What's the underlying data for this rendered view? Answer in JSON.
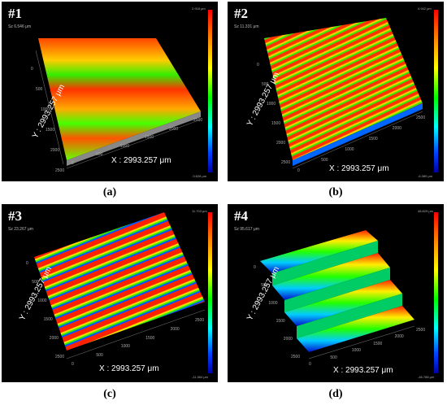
{
  "panels": [
    {
      "number": "#1",
      "sz": "Sz 6.546 μm",
      "x_label": "X : 2993.257 μm",
      "y_label": "Y : 2993.257 μm",
      "cbar_top": "2.918 μm",
      "cbar_bottom": "-3.628 μm",
      "caption": "(a)"
    },
    {
      "number": "#2",
      "sz": "Sz 11.331 μm",
      "x_label": "X : 2993.257 μm",
      "y_label": "Y : 2993.257 μm",
      "cbar_top": "4.942 μm",
      "cbar_bottom": "-6.389 μm",
      "caption": "(b)"
    },
    {
      "number": "#3",
      "sz": "Sz 23.267 μm",
      "x_label": "X : 2993.257 μm",
      "y_label": "Y : 2993.257 μm",
      "cbar_top": "11.703 μm",
      "cbar_bottom": "-11.564 μm",
      "caption": "(c)"
    },
    {
      "number": "#4",
      "sz": "Sz 95.617 μm",
      "x_label": "X : 2993.257 μm",
      "y_label": "Y : 2993.257 μm",
      "cbar_top": "48.829 μm",
      "cbar_bottom": "-46.788 μm",
      "caption": "(d)"
    }
  ],
  "tick_labels": [
    "0",
    "500",
    "1000",
    "1500",
    "2000",
    "2500"
  ]
}
